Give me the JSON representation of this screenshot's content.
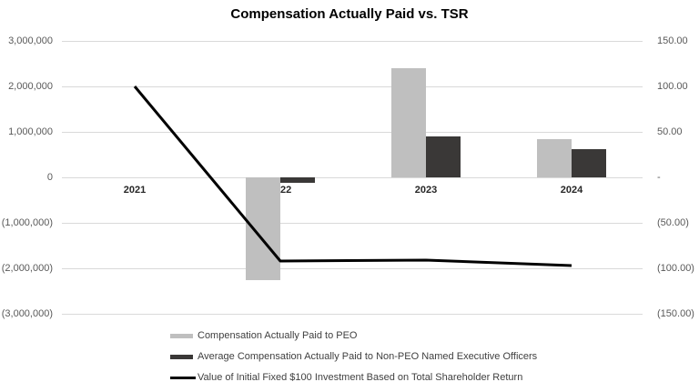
{
  "chart_data": {
    "type": "combo-bar-line",
    "title": "Compensation Actually Paid vs. TSR",
    "categories": [
      "2021",
      "2022",
      "2023",
      "2024"
    ],
    "series": [
      {
        "name": "Compensation Actually Paid to PEO",
        "type": "bar",
        "axis": "left",
        "color": "#bfbfbf",
        "values": [
          null,
          -2250000,
          2400000,
          850000
        ]
      },
      {
        "name": "Average Compensation Actually Paid to Non-PEO Named Executive Officers",
        "type": "bar",
        "axis": "left",
        "color": "#3a3837",
        "values": [
          null,
          -110000,
          910000,
          625000
        ]
      },
      {
        "name": "Value of Initial Fixed $100 Investment Based on Total Shareholder Return",
        "type": "line",
        "axis": "right",
        "color": "#000000",
        "values": [
          100,
          -92,
          -91,
          -97
        ]
      }
    ],
    "left_axis_ticks": [
      "3,000,000",
      "2,000,000",
      "1,000,000",
      "0",
      "(1,000,000)",
      "(2,000,000)",
      "(3,000,000)"
    ],
    "right_axis_ticks": [
      "150.00",
      "100.00",
      "50.00",
      "-",
      "(50.00)",
      "(100.00)",
      "(150.00)"
    ],
    "left_ylim": [
      -3000000,
      3000000
    ],
    "right_ylim": [
      -150,
      150
    ],
    "grid": "horizontal",
    "legend_position": "bottom-left"
  },
  "colors": {
    "peo_bar": "#bfbfbf",
    "non_peo_bar": "#3a3837",
    "tsr_line": "#000000",
    "gridline": "#d9d9d9",
    "axis_label": "#595959",
    "category_label": "#262626",
    "legend_text": "#404040",
    "background": "#ffffff"
  }
}
